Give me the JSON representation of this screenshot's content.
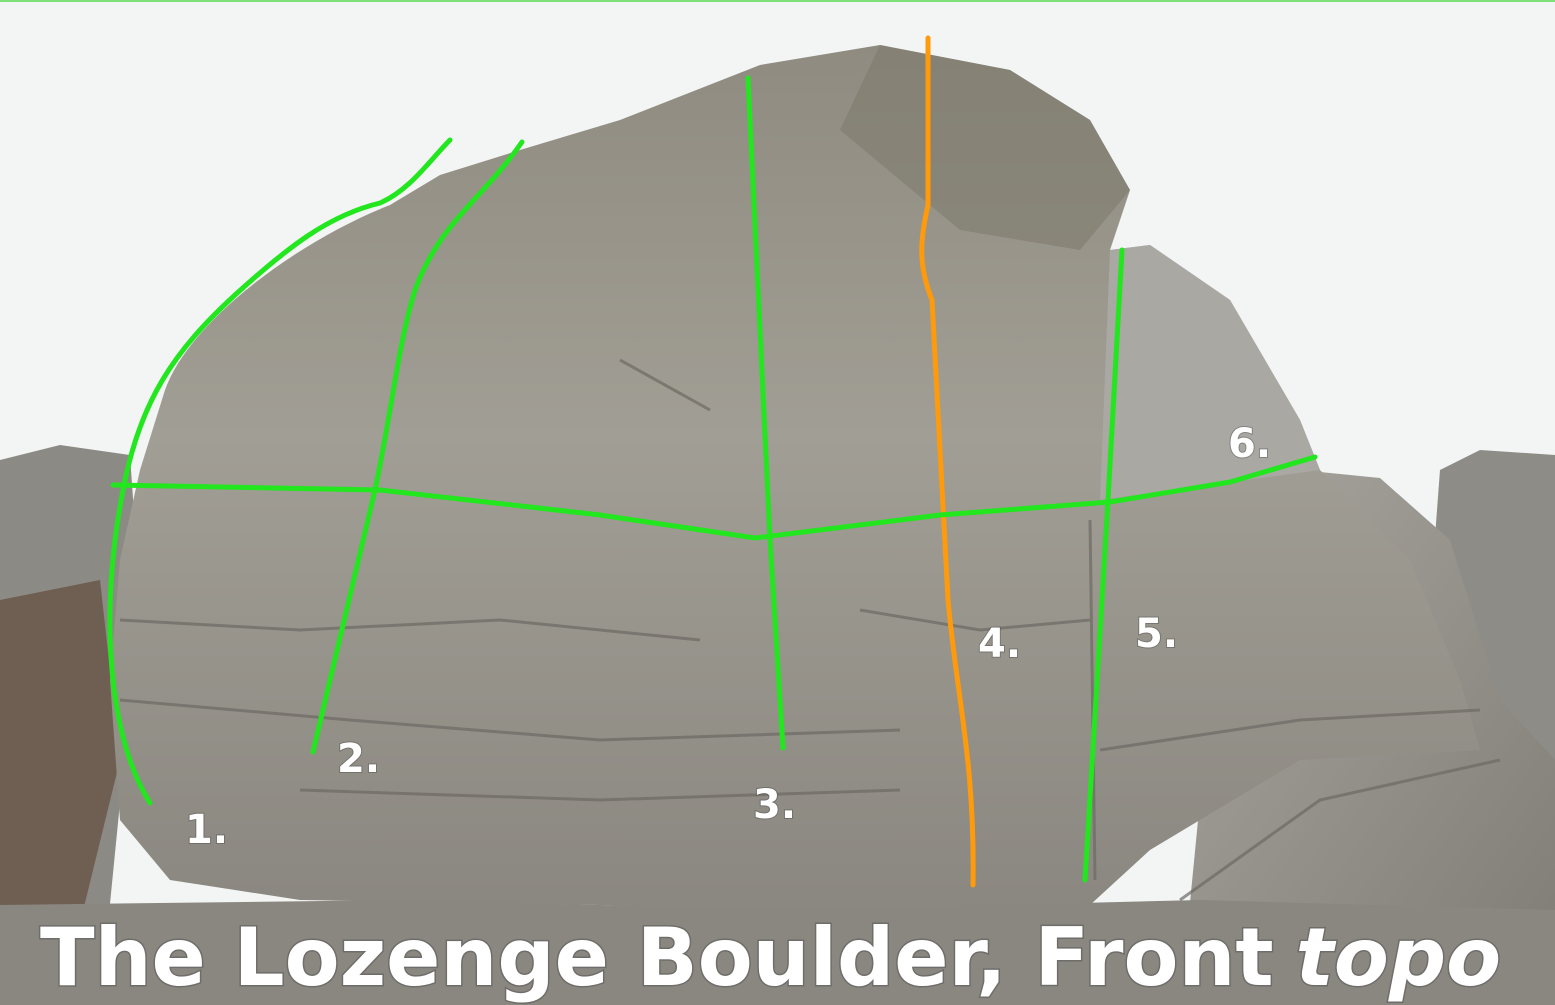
{
  "title": {
    "main": "The Lozenge Boulder, Front",
    "emphasis": "topo"
  },
  "routes": [
    {
      "label": "1.",
      "color": "#22e61e"
    },
    {
      "label": "2.",
      "color": "#22e61e"
    },
    {
      "label": "3.",
      "color": "#22e61e"
    },
    {
      "label": "4.",
      "color": "#ff9a0a"
    },
    {
      "label": "5.",
      "color": "#22e61e"
    },
    {
      "label": "6.",
      "color": "#22e61e"
    }
  ]
}
